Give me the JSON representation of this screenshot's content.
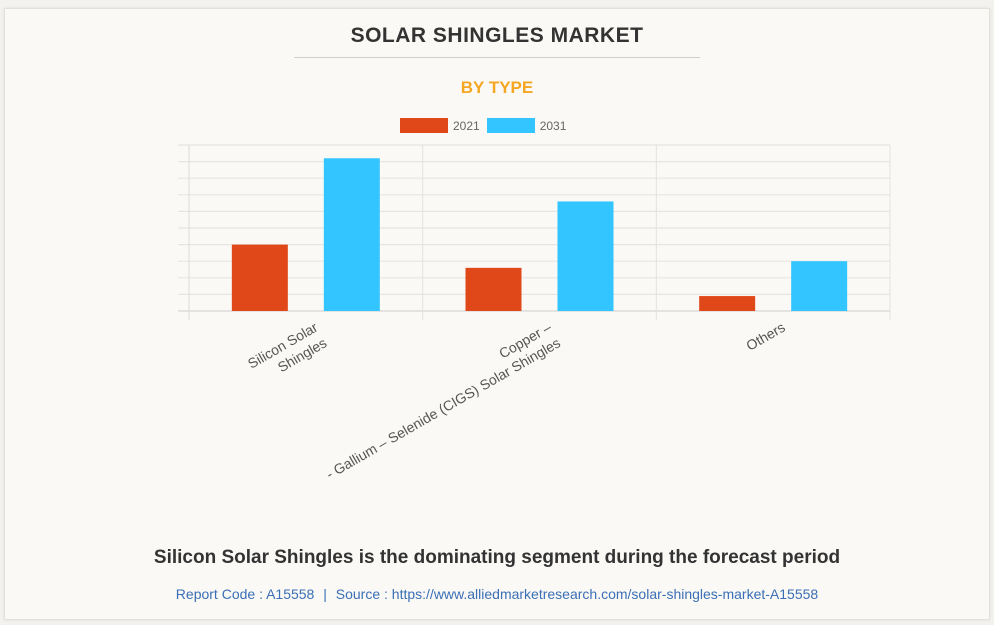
{
  "title": "SOLAR SHINGLES MARKET",
  "subtitle": "BY TYPE",
  "headline": "Silicon Solar Shingles is the dominating segment during the forecast period",
  "source": {
    "report_code_label": "Report Code : A15558",
    "separator": "|",
    "source_label": "Source : https://www.alliedmarketresearch.com/solar-shingles-market-A15558"
  },
  "colors": {
    "series_2021": "#e0481a",
    "series_2031": "#32c5ff",
    "title": "#333333",
    "subtitle": "#f5a623",
    "source": "#3b6fb6"
  },
  "chart_data": {
    "type": "bar",
    "title": "SOLAR SHINGLES MARKET",
    "subtitle": "BY TYPE",
    "xlabel": "",
    "ylabel": "",
    "categories": [
      [
        "Silicon Solar",
        "Shingles"
      ],
      [
        "Copper –",
        "- Gallium – Selenide (CIGS) Solar Shingles"
      ],
      [
        "Others"
      ]
    ],
    "category_names": [
      "Silicon Solar Shingles",
      "Copper – Indium – Gallium – Selenide (CIGS) Solar Shingles",
      "Others"
    ],
    "series": [
      {
        "name": "2021",
        "values": [
          4.0,
          2.6,
          0.9
        ]
      },
      {
        "name": "2031",
        "values": [
          9.2,
          6.6,
          3.0
        ]
      }
    ],
    "ylim": [
      0,
      10
    ],
    "y_gridlines": 10,
    "y_tick_labels_shown": false,
    "grid": true,
    "legend": "top-center",
    "units_note": "relative units (no y-axis labels shown)"
  }
}
